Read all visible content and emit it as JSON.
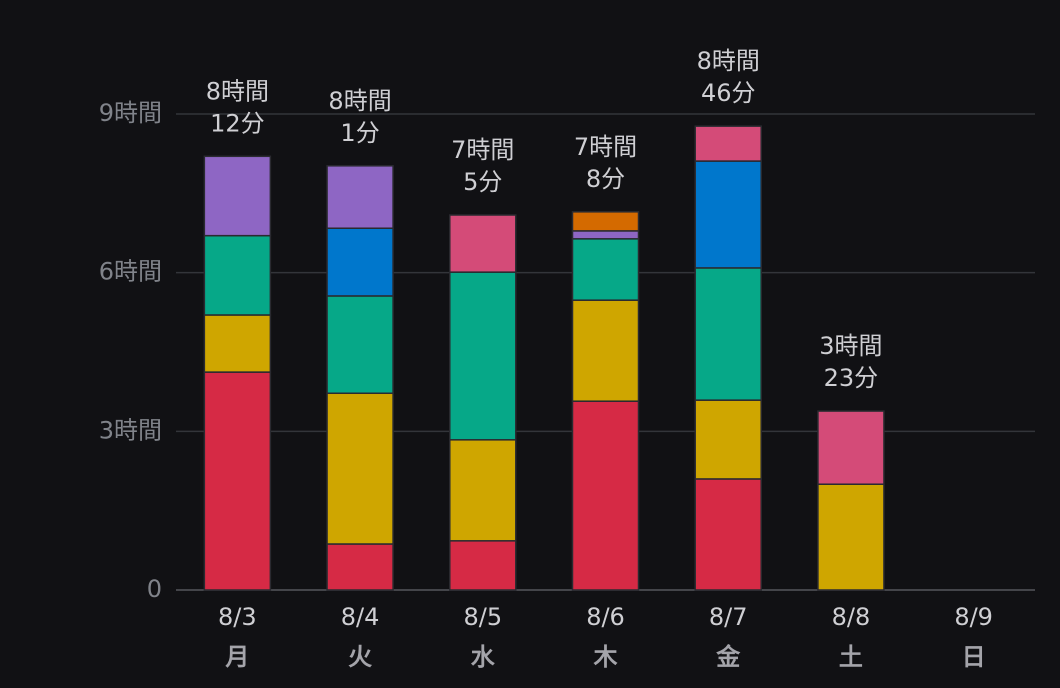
{
  "chart_data": {
    "type": "stacked_bar",
    "categories": [
      "8/3",
      "8/4",
      "8/5",
      "8/6",
      "8/7",
      "8/8",
      "8/9"
    ],
    "weekdays": [
      "月",
      "火",
      "水",
      "木",
      "金",
      "土",
      "日"
    ],
    "series": [
      {
        "color": "#d62a45",
        "values": [
          4.12,
          0.87,
          0.93,
          3.57,
          2.1,
          null,
          null
        ]
      },
      {
        "color": "#cfa600",
        "values": [
          1.08,
          2.85,
          1.91,
          1.91,
          1.49,
          2.0,
          null
        ]
      },
      {
        "color": "#06a888",
        "values": [
          1.5,
          1.84,
          3.17,
          1.16,
          2.5,
          null,
          null
        ]
      },
      {
        "color": "#0077cc",
        "values": [
          null,
          1.28,
          null,
          null,
          2.02,
          null,
          null
        ]
      },
      {
        "color": "#8e66c4",
        "values": [
          1.5,
          1.18,
          null,
          0.15,
          null,
          null,
          null
        ]
      },
      {
        "color": "#d46a00",
        "values": [
          null,
          null,
          null,
          0.36,
          null,
          null,
          null
        ]
      },
      {
        "color": "#d44b78",
        "values": [
          null,
          null,
          1.08,
          null,
          0.66,
          1.383,
          null
        ]
      }
    ],
    "totals": [
      8.2,
      8.017,
      7.083,
      7.133,
      8.767,
      3.383,
      null
    ],
    "total_labels": [
      [
        "8時間",
        "12分"
      ],
      [
        "8時間",
        "1分"
      ],
      [
        "7時間",
        "5分"
      ],
      [
        "7時間",
        "8分"
      ],
      [
        "8時間",
        "46分"
      ],
      [
        "3時間",
        "23分"
      ],
      null
    ],
    "ylim": [
      0,
      9
    ],
    "yticks": [
      0,
      {
        "value": 3,
        "label": "3時間"
      },
      {
        "value": 6,
        "label": "6時間"
      },
      {
        "value": 9,
        "label": "9時間"
      }
    ],
    "grid": true
  }
}
